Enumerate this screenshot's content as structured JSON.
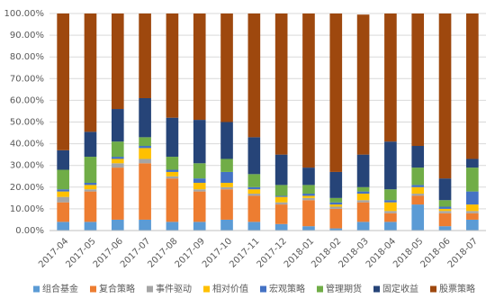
{
  "chart_data": {
    "type": "stacked_bar",
    "categories": [
      "2017-04",
      "2017-05",
      "2017-06",
      "2017-07",
      "2017-08",
      "2017-09",
      "2017-10",
      "2017-11",
      "2017-12",
      "2018-01",
      "2018-02",
      "2018-03",
      "2018-04",
      "2018-05",
      "2018-06",
      "2018-07"
    ],
    "series": [
      {
        "name": "组合基金",
        "color": "#5b9bd5",
        "values": [
          4,
          4,
          5,
          5,
          4,
          4,
          5,
          4,
          3,
          2,
          1,
          4,
          4,
          12,
          2,
          5
        ]
      },
      {
        "name": "复合策略",
        "color": "#ed7d31",
        "values": [
          9,
          14,
          24,
          26,
          20,
          14,
          14,
          12,
          9,
          12,
          9,
          9,
          4,
          4,
          6,
          3
        ]
      },
      {
        "name": "事件驱动",
        "color": "#a5a5a5",
        "values": [
          2.5,
          1,
          2,
          2,
          1,
          1,
          1,
          1,
          1,
          1,
          1,
          1,
          1,
          1,
          1,
          1
        ]
      },
      {
        "name": "相对价值",
        "color": "#ffc000",
        "values": [
          2.5,
          2,
          2,
          5,
          2,
          3,
          2,
          2,
          2.5,
          1,
          1,
          3,
          4,
          3,
          1,
          3
        ]
      },
      {
        "name": "宏观策略",
        "color": "#4472c4",
        "values": [
          1,
          1,
          1,
          1,
          1,
          2,
          5,
          1,
          0.5,
          1,
          1,
          1,
          1,
          1,
          1,
          6
        ]
      },
      {
        "name": "管理期货",
        "color": "#70ad47",
        "values": [
          9,
          12,
          7,
          4,
          6,
          7,
          6,
          6,
          5,
          4,
          2,
          2,
          5,
          8,
          3,
          11
        ]
      },
      {
        "name": "固定收益",
        "color": "#264478",
        "values": [
          9,
          11.5,
          15,
          18,
          18,
          20,
          17,
          17,
          14,
          8,
          12,
          15,
          22,
          10,
          10,
          4
        ]
      },
      {
        "name": "股票策略",
        "color": "#9e480e",
        "values": [
          63,
          54.5,
          44,
          39,
          48,
          49,
          50,
          57,
          65,
          71,
          73,
          64.5,
          59,
          61,
          76,
          67
        ]
      }
    ],
    "ylim": [
      0,
      100
    ],
    "yticks": [
      {
        "value": 0,
        "label": "0.00%"
      },
      {
        "value": 10,
        "label": "10.00%"
      },
      {
        "value": 20,
        "label": "20.00%"
      },
      {
        "value": 30,
        "label": "30.00%"
      },
      {
        "value": 40,
        "label": "40.00%"
      },
      {
        "value": 50,
        "label": "50.00%"
      },
      {
        "value": 60,
        "label": "60.00%"
      },
      {
        "value": 70,
        "label": "70.00%"
      },
      {
        "value": 80,
        "label": "80.00%"
      },
      {
        "value": 90,
        "label": "90.00%"
      },
      {
        "value": 100,
        "label": "100.00%"
      }
    ],
    "grid": true,
    "legend": "bottom"
  }
}
